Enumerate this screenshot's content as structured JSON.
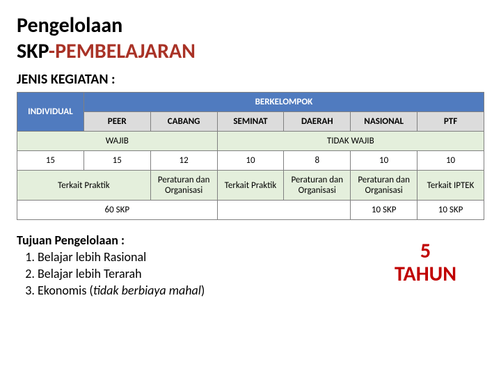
{
  "title": {
    "line1": "Pengelolaan",
    "line2_a": "SKP",
    "line2_b": "-PEMBELAJARAN"
  },
  "subtitle": "JENIS KEGIATAN :",
  "table": {
    "header": {
      "individual": "INDIVIDUAL",
      "group": "BERKELOMPOK",
      "cols": [
        "PEER",
        "CABANG",
        "SEMINAT",
        "DAERAH",
        "NASIONAL",
        "PTF"
      ],
      "wajib": "WAJIB",
      "tidak_wajib": "TIDAK WAJIB"
    },
    "row_nums": [
      "15",
      "15",
      "12",
      "10",
      "8",
      "10",
      "10"
    ],
    "row_desc": {
      "c0": "Terkait Praktik",
      "c1": "Peraturan dan Organisasi",
      "c2": "Terkait Praktik",
      "c3": "Peraturan dan Organisasi",
      "c4": "Peraturan dan Organisasi",
      "c5": "Terkait IPTEK"
    },
    "row_skp": {
      "c0": "60 SKP",
      "c1": "10 SKP",
      "c2": "10 SKP"
    }
  },
  "goals": {
    "heading": "Tujuan Pengelolaan :",
    "items": {
      "i1": "Belajar lebih Rasional",
      "i2": "Belajar lebih Terarah",
      "i3_a": "Ekonomis (",
      "i3_b": "tidak berbiaya mahal",
      "i3_c": ")"
    }
  },
  "duration": {
    "num": "5",
    "unit": "TAHUN"
  }
}
